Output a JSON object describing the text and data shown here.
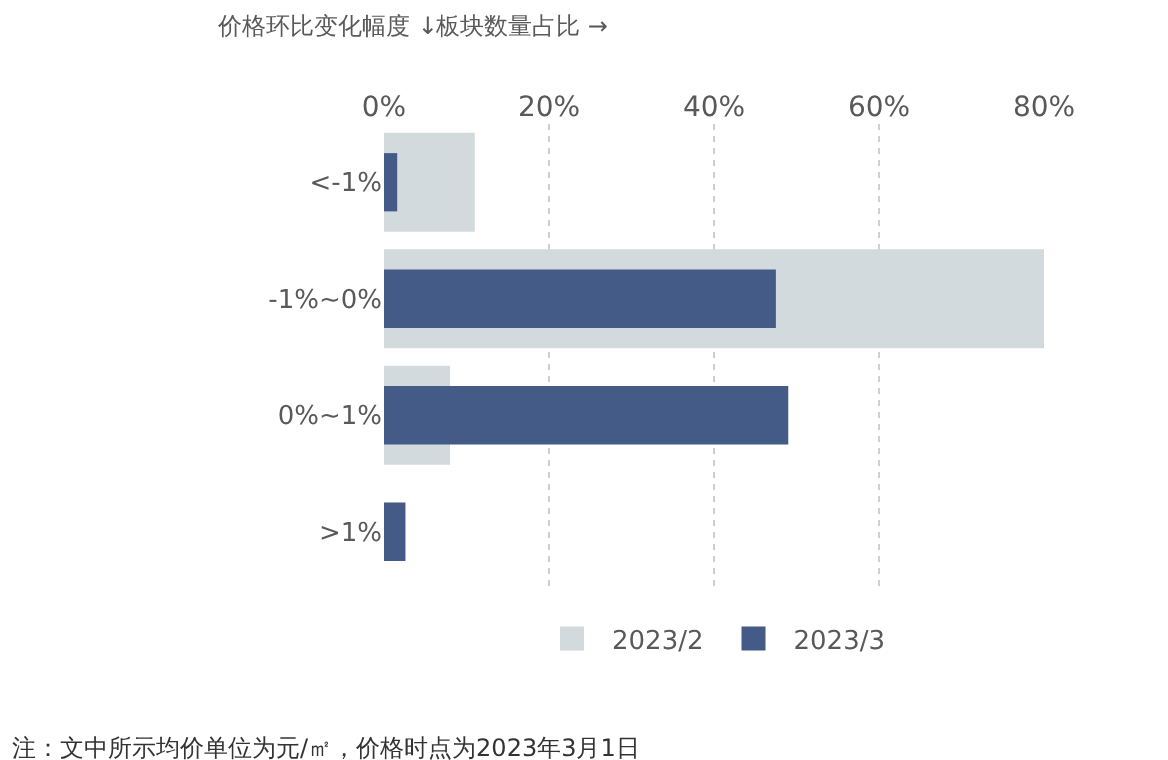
{
  "chart_data": {
    "type": "bar",
    "orientation": "horizontal",
    "ylabel": "价格环比变化幅度 ↓",
    "xlabel": "板块数量占比 →",
    "categories": [
      "<-1%",
      "-1%~0%",
      "0%~1%",
      ">1%"
    ],
    "series": [
      {
        "name": "2023/2",
        "color": "#d3dadd",
        "values": [
          11,
          80,
          8,
          null
        ]
      },
      {
        "name": "2023/3",
        "color": "#445a87",
        "values": [
          1.6,
          47.5,
          49,
          2.6
        ]
      }
    ],
    "xlim": [
      0,
      80
    ],
    "xticks": [
      {
        "value": 0,
        "label": "0%"
      },
      {
        "value": 20,
        "label": "20%"
      },
      {
        "value": 40,
        "label": "40%"
      },
      {
        "value": 60,
        "label": "60%"
      },
      {
        "value": 80,
        "label": "80%"
      }
    ],
    "grid": "x",
    "legend": "bottom",
    "annotations": [
      "注：文中所示均价单位为元/㎡，价格时点为2023年3月1日"
    ]
  }
}
